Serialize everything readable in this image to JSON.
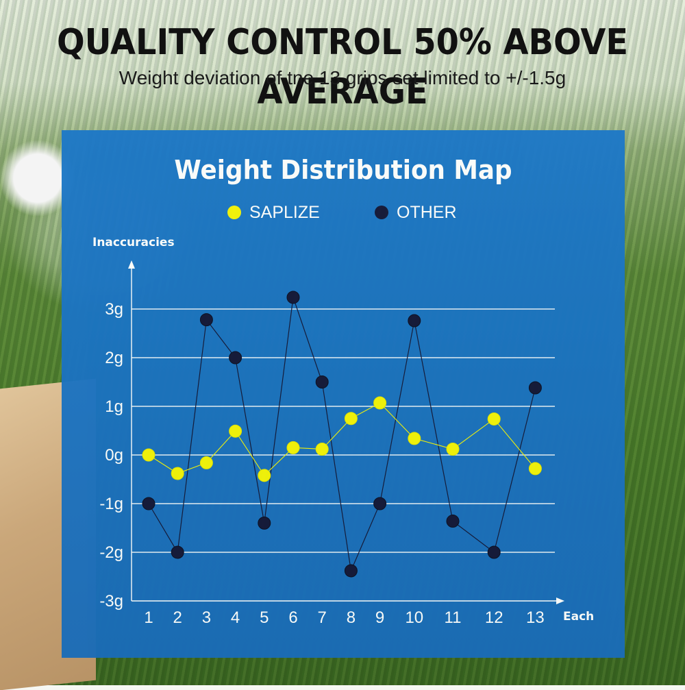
{
  "header": {
    "headline": "QUALITY CONTROL 50% ABOVE AVERAGE",
    "subline": "Weight deviation of tne 13 grips set limited to +/-1.5g"
  },
  "chart_data": {
    "type": "line",
    "title": "Weight Distribution Map",
    "ylabel": "Inaccuracies",
    "xlabel": "Each",
    "categories": [
      "1",
      "2",
      "3",
      "4",
      "5",
      "6",
      "7",
      "8",
      "9",
      "10",
      "11",
      "12",
      "13"
    ],
    "y_ticks": [
      "3g",
      "2g",
      "1g",
      "0g",
      "-1g",
      "-2g",
      "-3g"
    ],
    "ylim": [
      -3,
      3
    ],
    "grid": true,
    "legend": "top-center",
    "series": [
      {
        "name": "SAPLIZE",
        "color": "#f5f50a",
        "values": [
          0.0,
          -0.38,
          -0.16,
          0.49,
          -0.42,
          0.15,
          0.12,
          0.75,
          1.07,
          0.34,
          0.12,
          0.74,
          -0.28
        ]
      },
      {
        "name": "OTHER",
        "color": "#14183a",
        "values": [
          -1.0,
          -2.0,
          2.78,
          2.0,
          -1.4,
          3.24,
          1.5,
          -2.38,
          -1.0,
          2.76,
          -1.36,
          -2.0,
          1.38
        ]
      }
    ]
  }
}
